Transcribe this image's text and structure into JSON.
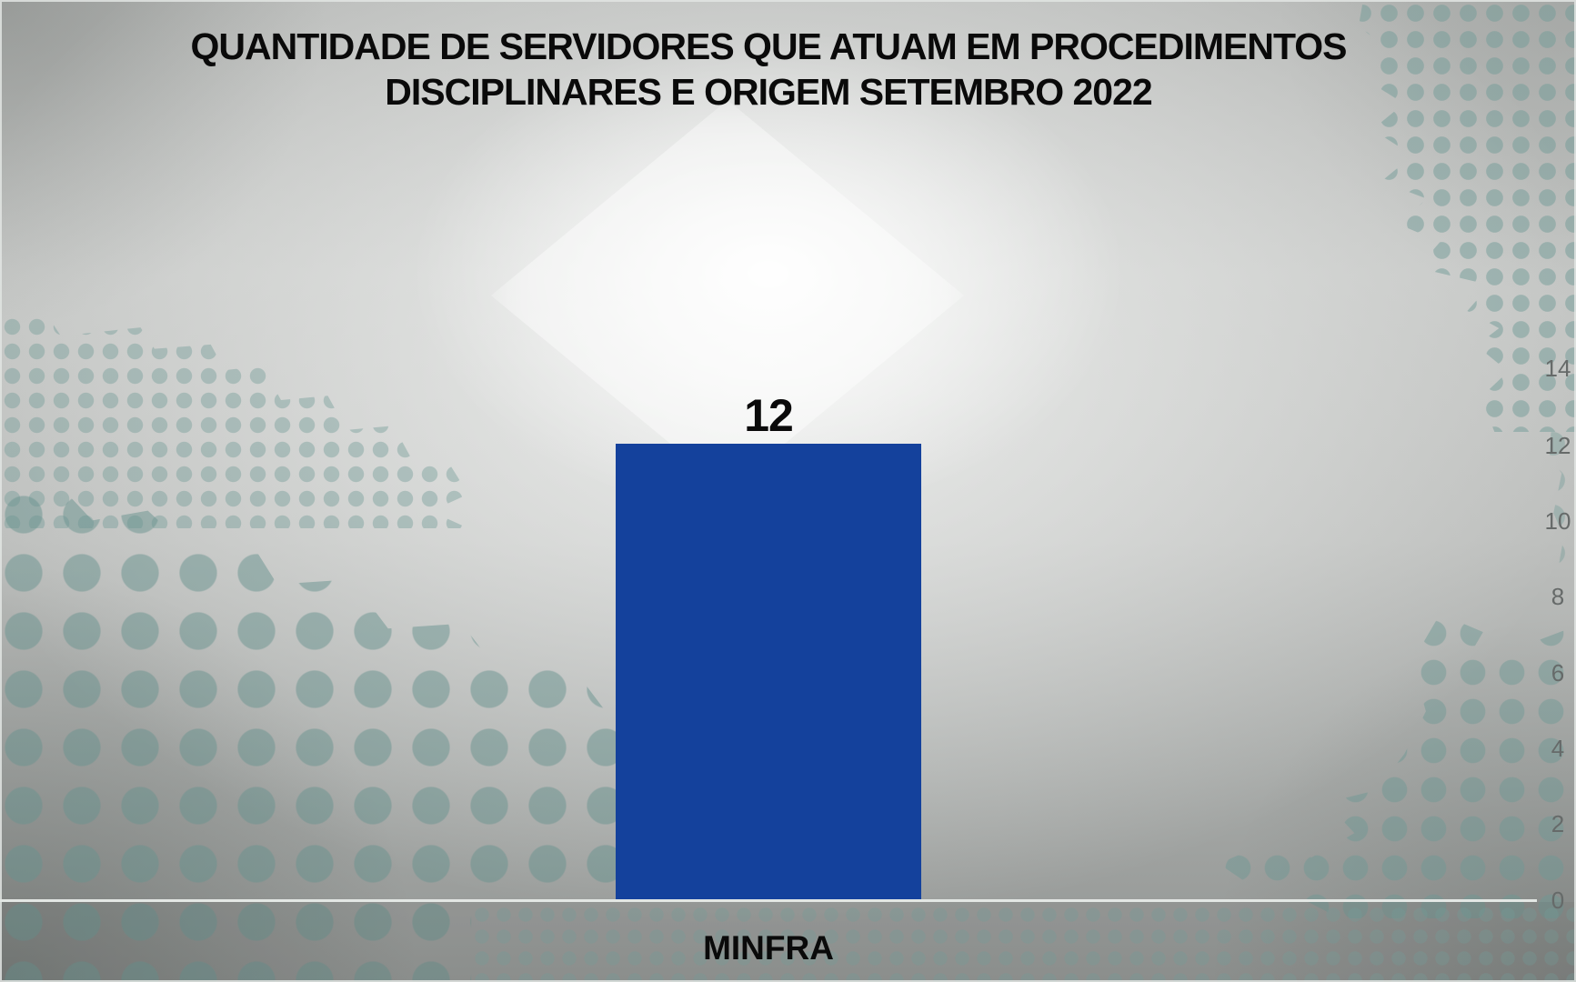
{
  "colors": {
    "bar": "#14419c",
    "title_text": "#0a0a0a",
    "data_label_text": "#0a0a0a",
    "category_text": "#0a0a0a",
    "axis_tick_text": "#666a69",
    "axis_line": "#e3e7e4",
    "halftone_dots": "#9cb8b4",
    "background_light": "#f5f6f5",
    "background_dark": "#8f928f"
  },
  "chart_data": {
    "type": "bar",
    "title": "QUANTIDADE DE SERVIDORES QUE ATUAM EM PROCEDIMENTOS DISCIPLINARES E ORIGEM SETEMBRO 2022",
    "title_lines": [
      "QUANTIDADE DE SERVIDORES QUE ATUAM EM PROCEDIMENTOS",
      "DISCIPLINARES E ORIGEM SETEMBRO 2022"
    ],
    "categories": [
      "MINFRA"
    ],
    "values": [
      12
    ],
    "data_labels": [
      "12"
    ],
    "xlabel": "",
    "ylabel": "",
    "ylim": [
      0,
      14
    ],
    "yticks": [
      0,
      2,
      4,
      6,
      8,
      10,
      12,
      14
    ],
    "ytick_labels": [
      "0",
      "2",
      "4",
      "6",
      "8",
      "10",
      "12",
      "14"
    ],
    "y_axis_side": "right",
    "gridlines": false,
    "legend": "none",
    "bar_color": "#14419c"
  }
}
